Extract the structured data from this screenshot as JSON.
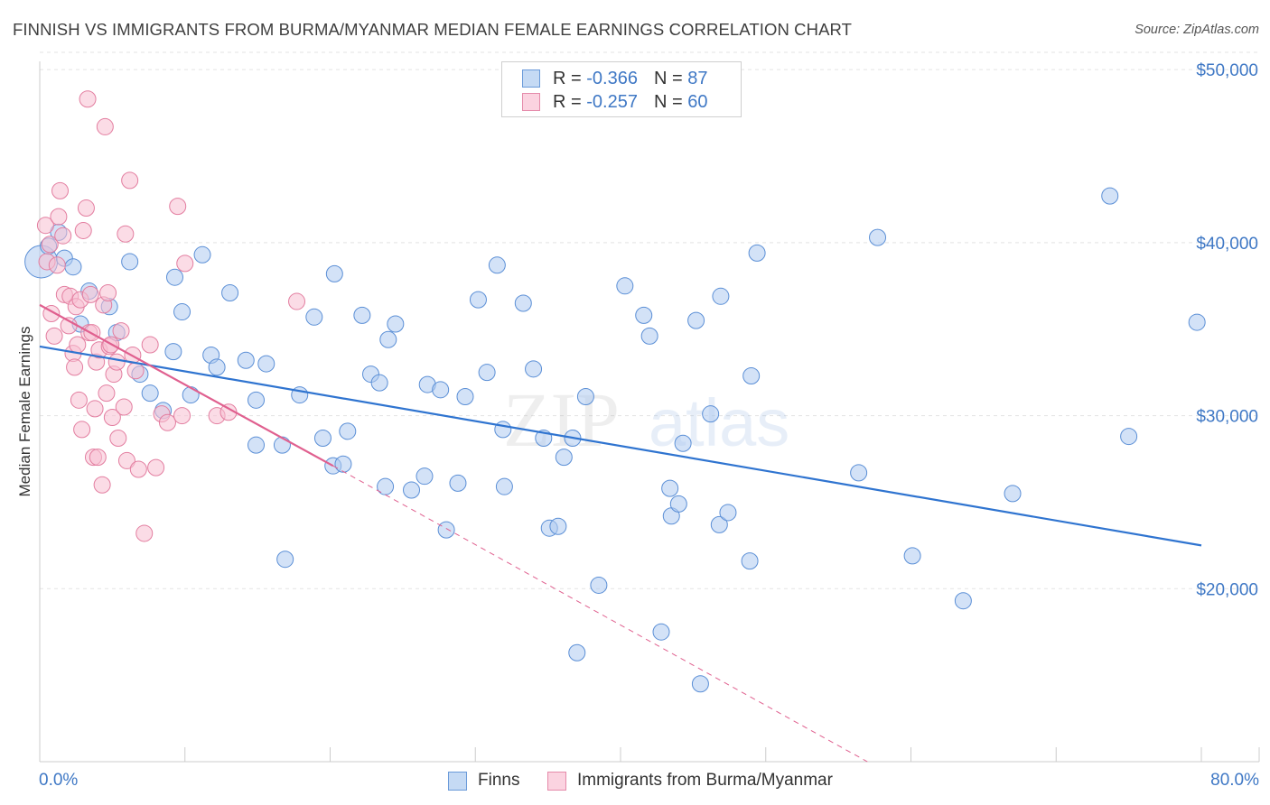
{
  "title": "FINNISH VS IMMIGRANTS FROM BURMA/MYANMAR MEDIAN FEMALE EARNINGS CORRELATION CHART",
  "source": "Source: ZipAtlas.com",
  "watermark": {
    "zip": "ZIP",
    "atlas": "atlas"
  },
  "colors": {
    "blue_fill": "#aecbf0",
    "blue_stroke": "#5b8fd6",
    "blue_line": "#2f74d0",
    "pink_fill": "#f7bfd1",
    "pink_stroke": "#e37ea0",
    "pink_line": "#e0608f",
    "accent_text": "#3f78c5"
  },
  "legend": {
    "rows": [
      {
        "r_label": "R =",
        "r_value": "-0.366",
        "n_label": "N =",
        "n_value": "87"
      },
      {
        "r_label": "R =",
        "r_value": "-0.257",
        "n_label": "N =",
        "n_value": "60"
      }
    ]
  },
  "bottom_legend": {
    "finns": "Finns",
    "burma": "Immigrants from Burma/Myanmar"
  },
  "chart_data": {
    "type": "scatter",
    "title": "FINNISH VS IMMIGRANTS FROM BURMA/MYANMAR MEDIAN FEMALE EARNINGS CORRELATION CHART",
    "xlabel": "",
    "ylabel": "Median Female Earnings",
    "xlim": [
      0,
      80
    ],
    "ylim": [
      10000,
      51000
    ],
    "x_tick_labels": [
      "0.0%",
      "80.0%"
    ],
    "y_ticks": [
      20000,
      30000,
      40000,
      50000
    ],
    "y_tick_labels": [
      "$20,000",
      "$30,000",
      "$40,000",
      "$50,000"
    ],
    "grid": true,
    "series": [
      {
        "name": "Finns",
        "r": -0.366,
        "n": 87,
        "trend": {
          "x": [
            0,
            80
          ],
          "y": [
            34000,
            22500
          ],
          "style": "solid"
        },
        "points": [
          [
            0.1,
            38900
          ],
          [
            0.6,
            39800
          ],
          [
            1.3,
            40600
          ],
          [
            1.7,
            39100
          ],
          [
            2.3,
            38600
          ],
          [
            3.4,
            37200
          ],
          [
            4.8,
            36300
          ],
          [
            6.2,
            38900
          ],
          [
            2.8,
            35300
          ],
          [
            5.3,
            34800
          ],
          [
            6.9,
            32400
          ],
          [
            7.6,
            31300
          ],
          [
            8.5,
            30300
          ],
          [
            9.3,
            38000
          ],
          [
            9.8,
            36000
          ],
          [
            9.2,
            33700
          ],
          [
            10.4,
            31200
          ],
          [
            11.2,
            39300
          ],
          [
            11.8,
            33500
          ],
          [
            12.2,
            32800
          ],
          [
            13.1,
            37100
          ],
          [
            14.2,
            33200
          ],
          [
            14.9,
            30900
          ],
          [
            14.9,
            28300
          ],
          [
            15.6,
            33000
          ],
          [
            16.7,
            28300
          ],
          [
            16.9,
            21700
          ],
          [
            17.9,
            31200
          ],
          [
            18.9,
            35700
          ],
          [
            19.5,
            28700
          ],
          [
            20.2,
            27100
          ],
          [
            20.3,
            38200
          ],
          [
            20.9,
            27200
          ],
          [
            21.2,
            29100
          ],
          [
            22.2,
            35800
          ],
          [
            22.8,
            32400
          ],
          [
            23.4,
            31900
          ],
          [
            23.8,
            25900
          ],
          [
            24.0,
            34400
          ],
          [
            24.5,
            35300
          ],
          [
            25.6,
            25700
          ],
          [
            26.5,
            26500
          ],
          [
            26.7,
            31800
          ],
          [
            27.6,
            31500
          ],
          [
            28.0,
            23400
          ],
          [
            28.8,
            26100
          ],
          [
            29.3,
            31100
          ],
          [
            30.2,
            36700
          ],
          [
            30.8,
            32500
          ],
          [
            31.5,
            38700
          ],
          [
            31.9,
            29200
          ],
          [
            32.0,
            25900
          ],
          [
            33.3,
            36500
          ],
          [
            34.0,
            32700
          ],
          [
            34.7,
            28700
          ],
          [
            35.1,
            23500
          ],
          [
            35.7,
            23600
          ],
          [
            36.1,
            27600
          ],
          [
            36.7,
            28700
          ],
          [
            37.0,
            16300
          ],
          [
            37.6,
            31100
          ],
          [
            38.5,
            20200
          ],
          [
            40.3,
            37500
          ],
          [
            41.6,
            35800
          ],
          [
            42.0,
            34600
          ],
          [
            42.8,
            17500
          ],
          [
            43.4,
            25800
          ],
          [
            43.5,
            24200
          ],
          [
            44.0,
            24900
          ],
          [
            44.3,
            28400
          ],
          [
            45.2,
            35500
          ],
          [
            45.5,
            14500
          ],
          [
            46.2,
            30100
          ],
          [
            46.8,
            23700
          ],
          [
            46.9,
            36900
          ],
          [
            47.4,
            24400
          ],
          [
            48.9,
            21600
          ],
          [
            49.0,
            32300
          ],
          [
            49.4,
            39400
          ],
          [
            56.4,
            26700
          ],
          [
            57.7,
            40300
          ],
          [
            60.1,
            21900
          ],
          [
            63.6,
            19300
          ],
          [
            67.0,
            25500
          ],
          [
            73.7,
            42700
          ],
          [
            75.0,
            28800
          ],
          [
            79.7,
            35400
          ]
        ]
      },
      {
        "name": "Immigrants from Burma/Myanmar",
        "r": -0.257,
        "n": 60,
        "trend": {
          "x": [
            0,
            20.2
          ],
          "y": [
            36400,
            27100
          ],
          "style": "solid",
          "extension": {
            "x": [
              20.2,
              57
            ],
            "y": [
              27100,
              10000
            ],
            "style": "dashed"
          }
        },
        "points": [
          [
            0.4,
            41000
          ],
          [
            0.5,
            38900
          ],
          [
            0.7,
            39900
          ],
          [
            0.8,
            35900
          ],
          [
            1.0,
            34600
          ],
          [
            1.2,
            38700
          ],
          [
            1.3,
            41500
          ],
          [
            1.4,
            43000
          ],
          [
            1.6,
            40400
          ],
          [
            1.7,
            37000
          ],
          [
            2.0,
            35200
          ],
          [
            2.1,
            36900
          ],
          [
            2.3,
            33600
          ],
          [
            2.4,
            32800
          ],
          [
            2.5,
            36300
          ],
          [
            2.6,
            34100
          ],
          [
            2.7,
            30900
          ],
          [
            2.8,
            36700
          ],
          [
            2.9,
            29200
          ],
          [
            3.0,
            40700
          ],
          [
            3.2,
            42000
          ],
          [
            3.3,
            48300
          ],
          [
            3.4,
            34800
          ],
          [
            3.5,
            37000
          ],
          [
            3.6,
            34800
          ],
          [
            3.7,
            27600
          ],
          [
            3.8,
            30400
          ],
          [
            3.9,
            33100
          ],
          [
            4.0,
            27600
          ],
          [
            4.1,
            33800
          ],
          [
            4.3,
            26000
          ],
          [
            4.4,
            36400
          ],
          [
            4.5,
            46700
          ],
          [
            4.6,
            31300
          ],
          [
            4.7,
            37100
          ],
          [
            4.8,
            34000
          ],
          [
            4.9,
            34100
          ],
          [
            5.0,
            29900
          ],
          [
            5.1,
            32400
          ],
          [
            5.3,
            33100
          ],
          [
            5.4,
            28700
          ],
          [
            5.6,
            34900
          ],
          [
            5.8,
            30500
          ],
          [
            5.9,
            40500
          ],
          [
            6.0,
            27400
          ],
          [
            6.2,
            43600
          ],
          [
            6.4,
            33500
          ],
          [
            6.6,
            32600
          ],
          [
            6.8,
            26900
          ],
          [
            7.2,
            23200
          ],
          [
            7.6,
            34100
          ],
          [
            8.0,
            27000
          ],
          [
            8.4,
            30100
          ],
          [
            8.8,
            29600
          ],
          [
            9.5,
            42100
          ],
          [
            9.8,
            30000
          ],
          [
            10.0,
            38800
          ],
          [
            12.2,
            30000
          ],
          [
            13.0,
            30200
          ],
          [
            17.7,
            36600
          ]
        ]
      }
    ]
  }
}
